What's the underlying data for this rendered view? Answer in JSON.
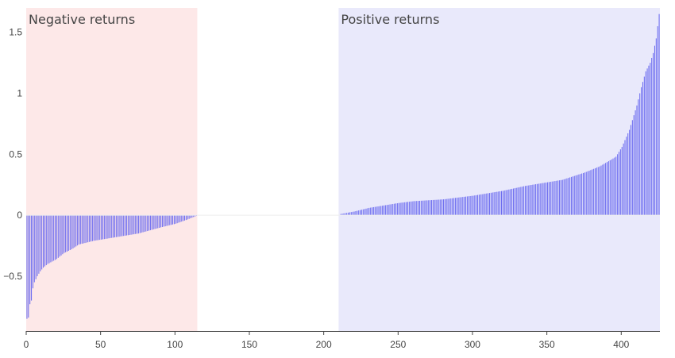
{
  "chart_data": {
    "type": "bar",
    "xlim": [
      0,
      426
    ],
    "ylim": [
      -0.95,
      1.7
    ],
    "xticks": [
      0,
      50,
      100,
      150,
      200,
      250,
      300,
      350,
      400
    ],
    "xtick_labels": [
      "0",
      "50",
      "100",
      "150",
      "200",
      "250",
      "300",
      "350",
      "400"
    ],
    "yticks": [
      -0.5,
      0,
      0.5,
      1,
      1.5
    ],
    "ytick_labels": [
      "−0.5",
      "0",
      "0.5",
      "1",
      "1.5"
    ],
    "grid": false,
    "legend": "none",
    "bar_color": "#6b6bf0",
    "regions": [
      {
        "label": "Negative returns",
        "x0": 0,
        "x1": 115,
        "color": "#fde8e8"
      },
      {
        "label": "Positive returns",
        "x0": 210,
        "x1": 426,
        "color": "#e9e9fb"
      }
    ],
    "series": [
      {
        "name": "",
        "description_points": "sorted returns; piecewise anchors (index, value)",
        "anchors": [
          [
            0,
            -0.85
          ],
          [
            1,
            -0.84
          ],
          [
            2,
            -0.73
          ],
          [
            3,
            -0.7
          ],
          [
            4,
            -0.6
          ],
          [
            5,
            -0.55
          ],
          [
            7,
            -0.5
          ],
          [
            9,
            -0.46
          ],
          [
            11,
            -0.43
          ],
          [
            14,
            -0.4
          ],
          [
            20,
            -0.36
          ],
          [
            25,
            -0.31
          ],
          [
            30,
            -0.28
          ],
          [
            35,
            -0.24
          ],
          [
            45,
            -0.21
          ],
          [
            60,
            -0.18
          ],
          [
            75,
            -0.15
          ],
          [
            90,
            -0.1
          ],
          [
            100,
            -0.07
          ],
          [
            108,
            -0.035
          ],
          [
            114,
            -0.005
          ],
          [
            115,
            0.0
          ],
          [
            210,
            0.0
          ],
          [
            211,
            0.01
          ],
          [
            220,
            0.03
          ],
          [
            230,
            0.06
          ],
          [
            240,
            0.08
          ],
          [
            250,
            0.1
          ],
          [
            260,
            0.115
          ],
          [
            280,
            0.13
          ],
          [
            300,
            0.16
          ],
          [
            320,
            0.2
          ],
          [
            335,
            0.24
          ],
          [
            350,
            0.27
          ],
          [
            360,
            0.29
          ],
          [
            365,
            0.31
          ],
          [
            375,
            0.35
          ],
          [
            385,
            0.4
          ],
          [
            392,
            0.45
          ],
          [
            396,
            0.48
          ],
          [
            400,
            0.56
          ],
          [
            405,
            0.7
          ],
          [
            410,
            0.9
          ],
          [
            413,
            1.05
          ],
          [
            416,
            1.18
          ],
          [
            419,
            1.25
          ],
          [
            421,
            1.33
          ],
          [
            423,
            1.45
          ],
          [
            425,
            1.65
          ]
        ]
      }
    ]
  }
}
